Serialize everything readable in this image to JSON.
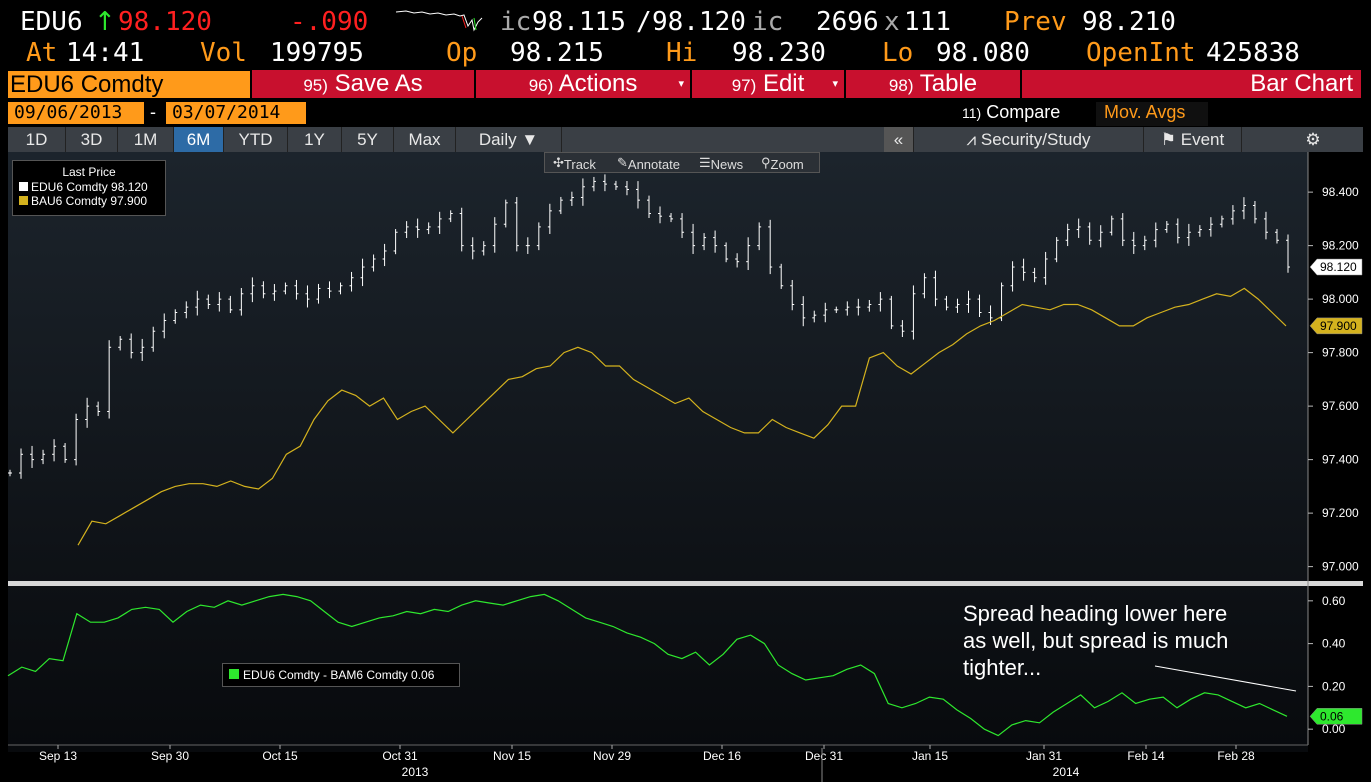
{
  "quote": {
    "ticker": "EDU6",
    "arrow": "↑",
    "last": "98.120",
    "change": "-.090",
    "bid_label": "ic",
    "bid": "98.115",
    "slash": "/",
    "ask": "98.120",
    "ask_label": "ic",
    "bid_size": "2696",
    "x": "x",
    "ask_size": "111",
    "prev_label": "Prev",
    "prev": "98.210",
    "at_label": "At",
    "time": "14:41",
    "vol_label": "Vol",
    "vol": "199795",
    "op_label": "Op",
    "open": "98.215",
    "hi_label": "Hi",
    "high": "98.230",
    "lo_label": "Lo",
    "low": "98.080",
    "oi_label": "OpenInt",
    "open_interest": "425838"
  },
  "toolbar": {
    "security": "EDU6 Comdty",
    "save_num": "95)",
    "save_label": "Save As",
    "actions_num": "96)",
    "actions_label": "Actions",
    "edit_num": "97)",
    "edit_label": "Edit",
    "table_num": "98)",
    "table_label": "Table",
    "title": "Bar Chart"
  },
  "dates": {
    "start": "09/06/2013",
    "dash": "-",
    "end": "03/07/2014",
    "compare_num": "11)",
    "compare": "Compare",
    "mov_avgs": "Mov. Avgs"
  },
  "ranges": [
    "1D",
    "3D",
    "1M",
    "6M",
    "YTD",
    "1Y",
    "5Y",
    "Max"
  ],
  "selected_range": "6M",
  "period": "Daily",
  "collapse": "«",
  "security_study": "Security/Study",
  "event": "Event",
  "chart_tools": {
    "track": "Track",
    "annotate": "Annotate",
    "news": "News",
    "zoom": "Zoom"
  },
  "colors": {
    "edu6": "#ffffff",
    "bau6": "#d4b21e",
    "spread": "#2ee82e",
    "toolbar": "#c8102e",
    "accent": "#ff9a1a"
  },
  "chart_data": [
    {
      "type": "line",
      "legend": {
        "header": "Last Price",
        "items": [
          "EDU6 Comdty 98.120",
          "BAU6 Comdty 97.900"
        ]
      },
      "ylim": [
        96.95,
        98.55
      ],
      "yticks": [
        "97.000",
        "97.200",
        "97.400",
        "97.600",
        "97.800",
        "98.000",
        "98.200",
        "98.400"
      ],
      "last_labels": [
        "98.120",
        "97.900"
      ],
      "x_labels": [
        "Sep 13",
        "Sep 30",
        "Oct 15",
        "Oct 31",
        "Nov 15",
        "Nov 29",
        "Dec 16",
        "Dec 31",
        "Jan 15",
        "Jan 31",
        "Feb 14",
        "Feb 28"
      ],
      "year_labels": [
        "2013",
        "2014"
      ],
      "series": [
        {
          "name": "EDU6 Comdty",
          "style": "ohlc-bar",
          "values": [
            97.35,
            97.42,
            97.4,
            97.42,
            97.45,
            97.4,
            97.55,
            97.6,
            97.58,
            97.82,
            97.85,
            97.8,
            97.82,
            97.88,
            97.92,
            97.95,
            97.97,
            98.0,
            97.98,
            98.0,
            97.96,
            98.02,
            98.05,
            98.02,
            98.03,
            98.05,
            98.02,
            98.0,
            98.04,
            98.03,
            98.05,
            98.08,
            98.12,
            98.15,
            98.18,
            98.25,
            98.27,
            98.26,
            98.27,
            98.3,
            98.32,
            98.2,
            98.18,
            98.2,
            98.28,
            98.36,
            98.2,
            98.2,
            98.27,
            98.33,
            98.37,
            98.38,
            98.42,
            98.44,
            98.43,
            98.42,
            98.41,
            98.37,
            98.32,
            98.31,
            98.3,
            98.25,
            98.2,
            98.23,
            98.2,
            98.15,
            98.14,
            98.2,
            98.27,
            98.12,
            98.05,
            97.98,
            97.93,
            97.94,
            97.96,
            97.96,
            97.97,
            97.97,
            97.98,
            98.0,
            97.9,
            97.88,
            98.02,
            98.08,
            98.0,
            97.97,
            97.98,
            98.0,
            97.95,
            97.93,
            98.05,
            98.12,
            98.1,
            98.08,
            98.15,
            98.22,
            98.26,
            98.27,
            98.22,
            98.25,
            98.3,
            98.22,
            98.2,
            98.22,
            98.26,
            98.28,
            98.23,
            98.25,
            98.26,
            98.28,
            98.3,
            98.33,
            98.35,
            98.3,
            98.25,
            98.22,
            98.12
          ]
        },
        {
          "name": "BAU6 Comdty",
          "style": "line",
          "values": [
            97.08,
            97.17,
            97.16,
            97.19,
            97.22,
            97.25,
            97.28,
            97.3,
            97.31,
            97.31,
            97.3,
            97.32,
            97.3,
            97.29,
            97.33,
            97.42,
            97.45,
            97.55,
            97.62,
            97.66,
            97.64,
            97.6,
            97.63,
            97.55,
            97.58,
            97.6,
            97.55,
            97.5,
            97.55,
            97.6,
            97.65,
            97.7,
            97.71,
            97.74,
            97.75,
            97.8,
            97.82,
            97.8,
            97.75,
            97.75,
            97.7,
            97.67,
            97.64,
            97.61,
            97.63,
            97.58,
            97.55,
            97.52,
            97.5,
            97.5,
            97.55,
            97.52,
            97.5,
            97.48,
            97.53,
            97.6,
            97.6,
            97.78,
            97.8,
            97.75,
            97.72,
            97.76,
            97.8,
            97.83,
            97.87,
            97.9,
            97.92,
            97.95,
            97.98,
            97.97,
            97.96,
            97.98,
            97.98,
            97.96,
            97.93,
            97.9,
            97.9,
            97.93,
            97.95,
            97.97,
            97.98,
            98.0,
            98.02,
            98.01,
            98.04,
            98.0,
            97.95,
            97.9
          ]
        }
      ]
    },
    {
      "type": "line",
      "legend": {
        "items": [
          "EDU6 Comdty - BAM6 Comdty 0.06"
        ]
      },
      "ylim": [
        -0.06,
        0.66
      ],
      "yticks": [
        "0.00",
        "0.20",
        "0.40",
        "0.60"
      ],
      "last_labels": [
        "0.06"
      ],
      "series": [
        {
          "name": "EDU6 Comdty - BAM6 Comdty",
          "style": "line",
          "values": [
            0.25,
            0.29,
            0.27,
            0.33,
            0.32,
            0.54,
            0.5,
            0.5,
            0.52,
            0.56,
            0.57,
            0.56,
            0.5,
            0.55,
            0.58,
            0.57,
            0.6,
            0.58,
            0.6,
            0.62,
            0.63,
            0.62,
            0.6,
            0.55,
            0.5,
            0.48,
            0.5,
            0.52,
            0.53,
            0.55,
            0.54,
            0.56,
            0.55,
            0.58,
            0.6,
            0.59,
            0.58,
            0.6,
            0.62,
            0.63,
            0.6,
            0.56,
            0.52,
            0.5,
            0.48,
            0.45,
            0.43,
            0.4,
            0.35,
            0.33,
            0.36,
            0.3,
            0.35,
            0.42,
            0.44,
            0.4,
            0.3,
            0.26,
            0.23,
            0.24,
            0.25,
            0.28,
            0.3,
            0.26,
            0.12,
            0.1,
            0.12,
            0.15,
            0.14,
            0.09,
            0.05,
            0.0,
            -0.03,
            0.02,
            0.04,
            0.03,
            0.08,
            0.12,
            0.16,
            0.1,
            0.13,
            0.17,
            0.12,
            0.14,
            0.15,
            0.1,
            0.14,
            0.17,
            0.16,
            0.13,
            0.1,
            0.12,
            0.09,
            0.06
          ]
        }
      ]
    }
  ],
  "annotation": {
    "text_line1": "Spread heading lower here",
    "text_line2": "as well, but spread is much",
    "text_line3": "tighter..."
  }
}
